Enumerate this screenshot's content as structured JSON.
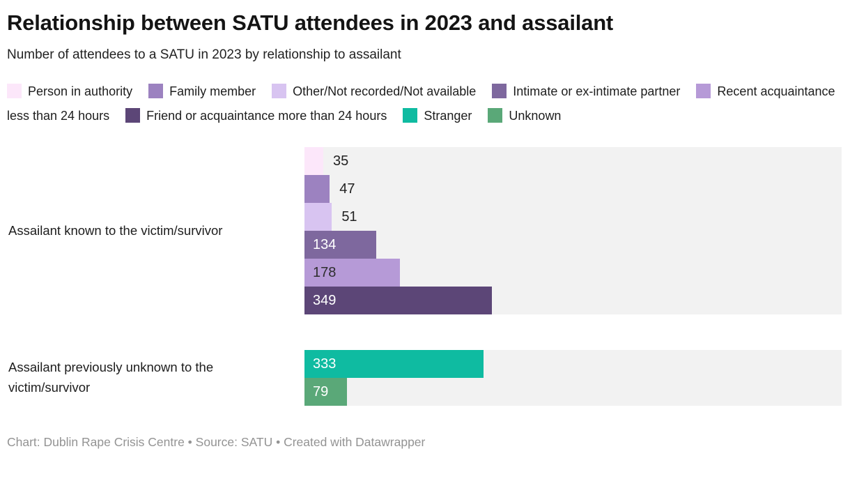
{
  "header": {
    "title": "Relationship between SATU attendees in 2023 and assailant",
    "subtitle": "Number of attendees to a SATU in 2023 by relationship to assailant"
  },
  "legend": {
    "items": [
      {
        "label": "Person in authority",
        "color": "#fce7fa"
      },
      {
        "label": "Family member",
        "color": "#9c82c0"
      },
      {
        "label": "Other/Not recorded/Not available",
        "color": "#d8c4f1"
      },
      {
        "label": "Intimate or ex-intimate partner",
        "color": "#7e689e"
      },
      {
        "label": "Recent acquaintance less than 24 hours",
        "color": "#b69ad7"
      },
      {
        "label": "Friend or acquaintance more than 24 hours",
        "color": "#5c4677"
      },
      {
        "label": "Stranger",
        "color": "#0fbba1"
      },
      {
        "label": "Unknown",
        "color": "#5aa878"
      }
    ]
  },
  "chart_data": {
    "type": "bar",
    "orientation": "horizontal",
    "title": "Relationship between SATU attendees in 2023 and assailant",
    "subtitle": "Number of attendees to a SATU in 2023 by relationship to assailant",
    "xlim": [
      0,
      1000
    ],
    "grid": false,
    "plot_background": "#f2f2f2",
    "groups": [
      {
        "label": "Assailant known to the victim/survivor",
        "bars": [
          {
            "name": "Person in authority",
            "value": 35,
            "color": "#fce7fa",
            "label_inside": false,
            "label_color": "#222222"
          },
          {
            "name": "Family member",
            "value": 47,
            "color": "#9c82c0",
            "label_inside": false,
            "label_color": "#222222"
          },
          {
            "name": "Other/Not recorded/Not available",
            "value": 51,
            "color": "#d8c4f1",
            "label_inside": false,
            "label_color": "#222222"
          },
          {
            "name": "Intimate or ex-intimate partner",
            "value": 134,
            "color": "#7e689e",
            "label_inside": true,
            "label_color": "#ffffff"
          },
          {
            "name": "Recent acquaintance less than 24 hours",
            "value": 178,
            "color": "#b69ad7",
            "label_inside": true,
            "label_color": "#2e2e2e"
          },
          {
            "name": "Friend or acquaintance more than 24 hours",
            "value": 349,
            "color": "#5c4677",
            "label_inside": true,
            "label_color": "#ffffff"
          }
        ]
      },
      {
        "label": "Assailant previously unknown to the victim/survivor",
        "bars": [
          {
            "name": "Stranger",
            "value": 333,
            "color": "#0fbba1",
            "label_inside": true,
            "label_color": "#ffffff"
          },
          {
            "name": "Unknown",
            "value": 79,
            "color": "#5aa878",
            "label_inside": true,
            "label_color": "#ffffff"
          }
        ]
      }
    ]
  },
  "footer": {
    "text": "Chart: Dublin Rape Crisis Centre • Source: SATU  • Created with Datawrapper"
  }
}
